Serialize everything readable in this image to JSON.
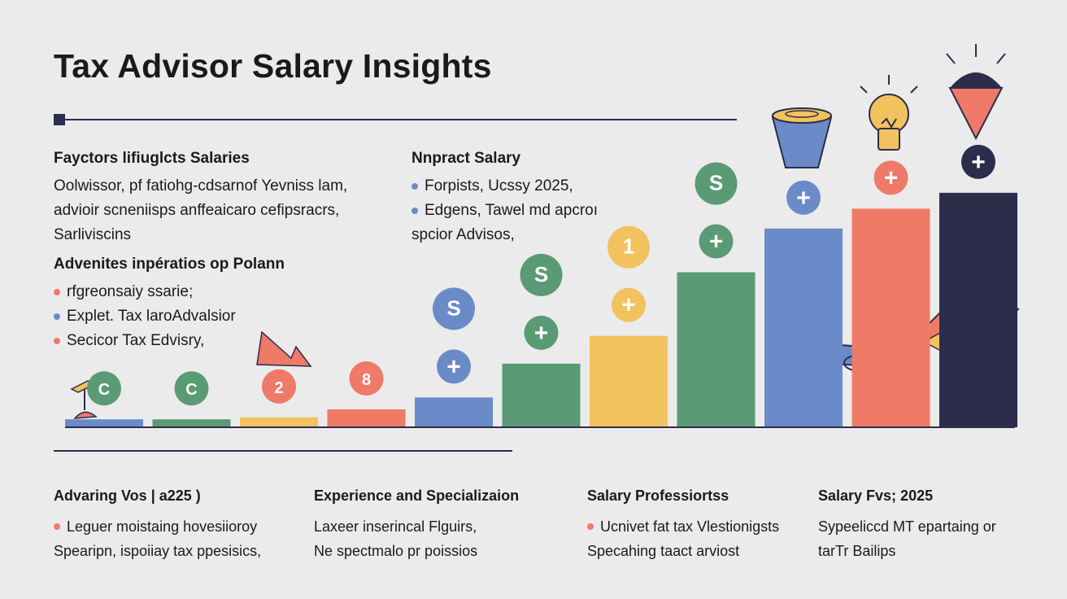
{
  "title": "Tax Advisor Salary Insights",
  "factors": {
    "heading": "Fayctors lifiuglcts Salaries",
    "lines": [
      "Oolwissor, pf fatiohg-cdsarnof Yevniss lam,",
      "advioir scneniisps anffeaicaro cefipsracrs,",
      "Sarliviscins"
    ]
  },
  "impact": {
    "heading": "Nnpract Salary",
    "bullets": [
      {
        "text": "Forpists, Ucssy 2025,",
        "color": "#6a8bc8"
      },
      {
        "text": "Edgens, Tawel md apcroı",
        "color": "#6a8bc8"
      },
      {
        "text": "spcior Advisos,",
        "color": ""
      }
    ]
  },
  "advantages": {
    "heading": "Advenites inpératios op Polann",
    "bullets": [
      {
        "text": "rfgreonsaiy ssarie;",
        "color": "#ee7a67"
      },
      {
        "text": "Explet. Tax laroAdvalsior",
        "color": "#6a8bc8"
      },
      {
        "text": "Secicor Tax Edvisry,",
        "color": "#ee7a67"
      }
    ]
  },
  "chart_data": {
    "type": "bar",
    "title": "",
    "xlabel": "",
    "ylabel": "",
    "categories": [
      "",
      "",
      "",
      "",
      "",
      "",
      "",
      "",
      "",
      "",
      ""
    ],
    "values": [
      2,
      2,
      2.5,
      4.5,
      7.5,
      16,
      23,
      39,
      50,
      55,
      59
    ],
    "colors": [
      "#6a8bc8",
      "#5a9a74",
      "#f2c25f",
      "#ee7a67",
      "#6a8bc8",
      "#5a9a74",
      "#f2c25f",
      "#5a9a74",
      "#6a8bc8",
      "#ee7a67",
      "#2b2d4a"
    ],
    "ylim": [
      0,
      60
    ],
    "markers": [
      "C",
      "C",
      "2",
      "8",
      "S",
      "S",
      "1",
      "S",
      "",
      "",
      ""
    ],
    "marker_colors": [
      "#5a9a74",
      "#5a9a74",
      "#ee7a67",
      "#ee7a67",
      "#6a8bc8",
      "#5a9a74",
      "#f2c25f",
      "#5a9a74",
      "",
      "",
      ""
    ],
    "plus_marker_colors": [
      "",
      "",
      "",
      "",
      "#6a8bc8",
      "#5a9a74",
      "#f2c25f",
      "#5a9a74",
      "#6a8bc8",
      "#ee7a67",
      "#2b2d4a"
    ],
    "grid": false
  },
  "columns": [
    {
      "heading": "Advaring Vos | a225 )",
      "lines": [
        {
          "text": "Leguer moistaing hovesiioroy",
          "dot": "#ee7a67"
        },
        {
          "text": "Spearipn, ispoiiay tax ppesisics,",
          "dot": ""
        }
      ]
    },
    {
      "heading": "Experience and Specializaion",
      "lines": [
        {
          "text": "Laxeer inserincal Flguirs,",
          "dot": ""
        },
        {
          "text": "Ne spectmalo pr poissios",
          "dot": ""
        }
      ]
    },
    {
      "heading": "Salary Professiortss",
      "lines": [
        {
          "text": "Ucnivet fat tax Vlestionigsts",
          "dot": "#ee7a67"
        },
        {
          "text": "Specahing taact arviost",
          "dot": ""
        }
      ]
    },
    {
      "heading": "Salary Fvs; 2025",
      "lines": [
        {
          "text": "Sypeeliccd MT epartaing or",
          "dot": ""
        },
        {
          "text": "tarTr Bailips",
          "dot": ""
        }
      ]
    }
  ]
}
